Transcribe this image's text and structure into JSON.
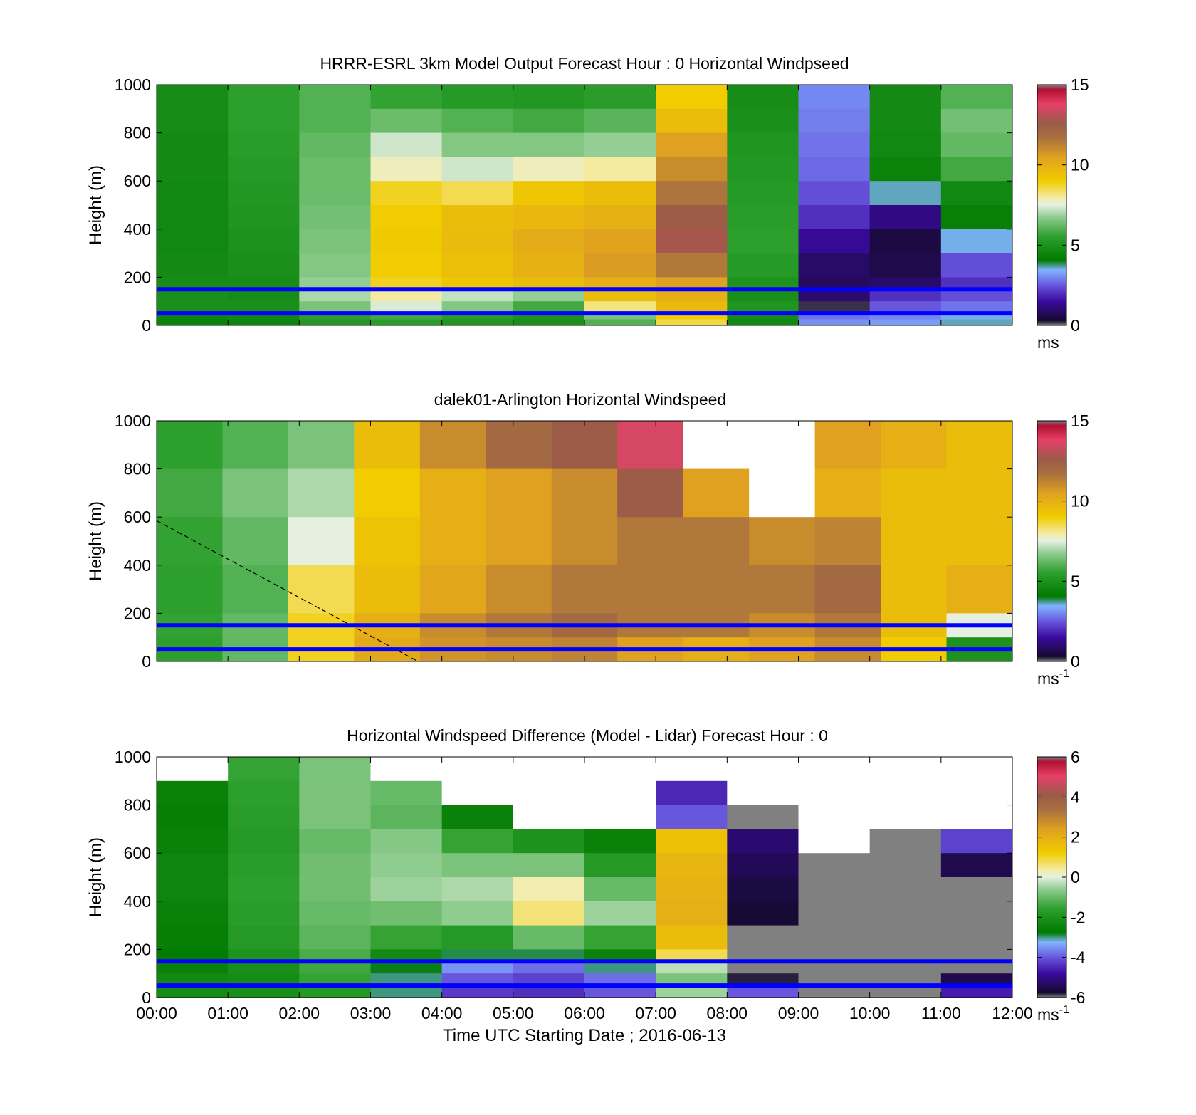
{
  "figure": {
    "xlabel": "Time UTC  Starting Date ; 2016-06-13",
    "x_ticks": [
      "00:00",
      "01:00",
      "02:00",
      "03:00",
      "04:00",
      "05:00",
      "06:00",
      "07:00",
      "08:00",
      "09:00",
      "10:00",
      "11:00",
      "12:00"
    ]
  },
  "colors": {
    "blue_line": "#0000ff",
    "missing": "#ffffff",
    "out_of_range": "#808080"
  },
  "chart_data": [
    {
      "type": "heatmap",
      "title": "HRRR-ESRL 3km Model Output   Forecast Hour : 0 Horizontal Windpseed",
      "ylabel": "Height (m)",
      "xlim": [
        "00:00",
        "12:00"
      ],
      "ylim": [
        0,
        1000
      ],
      "y_ticks": [
        0,
        200,
        400,
        600,
        800,
        1000
      ],
      "colorbar": {
        "ticks": [
          0,
          5,
          10,
          15
        ],
        "unit": "ms",
        "unit_sup": "",
        "range": [
          0,
          15
        ]
      },
      "hlines": [
        150,
        50
      ],
      "time_hours": [
        0,
        1,
        2,
        3,
        4,
        5,
        6,
        7,
        8,
        9,
        10,
        11
      ],
      "height_levels_m": [
        1000,
        900,
        800,
        700,
        600,
        500,
        400,
        300,
        200,
        150,
        100,
        50,
        25
      ],
      "windspeed_ms": [
        [
          4.8,
          5.5,
          6.0,
          5.6,
          5.3,
          5.2,
          5.4,
          9.0,
          4.8,
          3.0,
          4.7,
          6.0
        ],
        [
          4.8,
          5.5,
          6.0,
          6.3,
          6.0,
          5.8,
          6.1,
          9.5,
          4.9,
          2.9,
          4.7,
          6.4
        ],
        [
          4.7,
          5.4,
          6.2,
          7.3,
          6.6,
          6.6,
          6.8,
          10.5,
          5.1,
          2.8,
          4.6,
          6.2
        ],
        [
          4.7,
          5.3,
          6.3,
          7.8,
          7.3,
          7.8,
          8.0,
          11.0,
          5.2,
          2.7,
          4.4,
          5.8
        ],
        [
          4.6,
          5.2,
          6.3,
          8.8,
          8.5,
          9.2,
          9.5,
          11.6,
          5.3,
          2.4,
          3.6,
          4.6
        ],
        [
          4.6,
          5.1,
          6.4,
          9.0,
          9.5,
          9.7,
          9.9,
          12.5,
          5.4,
          2.0,
          1.2,
          4.3
        ],
        [
          4.6,
          5.0,
          6.5,
          9.1,
          9.6,
          10.1,
          10.4,
          12.8,
          5.5,
          1.4,
          0.5,
          3.5
        ],
        [
          4.7,
          4.9,
          6.6,
          9.0,
          9.4,
          9.9,
          10.6,
          11.5,
          5.3,
          0.9,
          0.6,
          2.4
        ],
        [
          4.8,
          4.8,
          6.8,
          8.8,
          9.2,
          9.5,
          10.0,
          10.5,
          5.0,
          0.8,
          0.9,
          2.0
        ],
        [
          4.9,
          4.8,
          7.0,
          8.0,
          7.2,
          6.8,
          9.5,
          10.0,
          4.9,
          1.0,
          2.0,
          2.4
        ],
        [
          4.9,
          4.9,
          6.5,
          7.4,
          6.6,
          5.8,
          8.2,
          9.6,
          5.1,
          0.2,
          2.5,
          2.8
        ],
        [
          4.5,
          4.6,
          5.5,
          5.8,
          5.4,
          5.0,
          6.5,
          9.0,
          4.8,
          2.8,
          3.0,
          3.5
        ],
        [
          4.4,
          4.5,
          5.2,
          5.4,
          5.1,
          4.9,
          6.0,
          8.6,
          4.6,
          3.1,
          3.2,
          3.6
        ]
      ]
    },
    {
      "type": "heatmap",
      "title": "dalek01-Arlington  Horizontal Windspeed",
      "ylabel": "Height (m)",
      "xlim": [
        "00:00",
        "12:00"
      ],
      "ylim": [
        0,
        1000
      ],
      "y_ticks": [
        0,
        200,
        400,
        600,
        800,
        1000
      ],
      "colorbar": {
        "ticks": [
          0,
          5,
          10,
          15
        ],
        "unit": "ms",
        "unit_sup": "-1",
        "range": [
          0,
          15
        ]
      },
      "hlines": [
        150,
        50
      ],
      "mixing_layer_line": {
        "style": "dashed",
        "points": [
          [
            "00:00",
            585
          ],
          [
            "03:40",
            0
          ]
        ]
      },
      "time_hours": [
        0,
        1,
        2,
        3,
        4,
        5,
        6,
        7,
        8,
        9,
        10,
        11,
        12
      ],
      "height_levels_m": [
        1000,
        800,
        600,
        400,
        200,
        100,
        0
      ],
      "windspeed_ms": [
        [
          5.5,
          6.0,
          6.5,
          9.5,
          11.0,
          12.0,
          12.5,
          13.5,
          null,
          null,
          10.5,
          10.0,
          9.5
        ],
        [
          5.8,
          6.5,
          7.0,
          9.0,
          10.0,
          10.5,
          11.0,
          12.5,
          10.5,
          null,
          10.0,
          9.5,
          9.5
        ],
        [
          5.6,
          6.2,
          7.5,
          9.3,
          10.0,
          10.5,
          11.0,
          11.5,
          11.5,
          11.0,
          11.2,
          9.5,
          9.5
        ],
        [
          5.5,
          6.0,
          8.5,
          9.5,
          10.3,
          11.0,
          11.5,
          11.5,
          11.5,
          11.5,
          12.0,
          9.5,
          10.0
        ],
        [
          5.6,
          6.2,
          8.8,
          10.0,
          11.0,
          11.5,
          12.0,
          11.5,
          11.5,
          11.0,
          11.5,
          9.5,
          7.5
        ],
        [
          5.5,
          6.2,
          8.8,
          10.2,
          10.8,
          11.0,
          11.2,
          10.5,
          10.0,
          10.5,
          11.0,
          9.0,
          5.0
        ],
        [
          5.0,
          5.5,
          8.5,
          9.5,
          9.8,
          9.5,
          9.5,
          9.5,
          9.0,
          8.5,
          8.0,
          7.5,
          4.5
        ]
      ]
    },
    {
      "type": "heatmap",
      "title": "Horizontal Windspeed Difference (Model - Lidar) Forecast Hour : 0",
      "ylabel": "Height (m)",
      "xlabel": "Time UTC  Starting Date ; 2016-06-13",
      "xlim": [
        "00:00",
        "12:00"
      ],
      "ylim": [
        0,
        1000
      ],
      "y_ticks": [
        0,
        200,
        400,
        600,
        800,
        1000
      ],
      "colorbar": {
        "ticks": [
          -6,
          -4,
          -2,
          0,
          2,
          4,
          6
        ],
        "unit": "ms",
        "unit_sup": "-1",
        "range": [
          -6,
          6
        ]
      },
      "hlines": [
        150,
        50
      ],
      "time_hours": [
        0,
        1,
        2,
        3,
        4,
        5,
        6,
        7,
        8,
        9,
        10,
        11
      ],
      "height_levels_m": [
        1000,
        900,
        800,
        700,
        600,
        500,
        400,
        300,
        200,
        150,
        100,
        50
      ],
      "difference_ms": [
        [
          null,
          -1.5,
          -0.8,
          null,
          null,
          null,
          null,
          null,
          null,
          null,
          null,
          null
        ],
        [
          -2.5,
          -1.6,
          -0.8,
          -1.0,
          null,
          null,
          null,
          -4.5,
          null,
          null,
          null,
          null
        ],
        [
          -2.6,
          -1.7,
          -0.8,
          -1.1,
          -2.5,
          null,
          null,
          -4.0,
          -7,
          null,
          null,
          null
        ],
        [
          -2.5,
          -1.8,
          -1.0,
          -0.7,
          -1.5,
          -2.0,
          -2.5,
          1.5,
          -5.2,
          null,
          -7,
          -4.2
        ],
        [
          -2.4,
          -1.7,
          -0.9,
          -0.6,
          -0.8,
          -0.8,
          -1.8,
          1.8,
          -5.4,
          -7,
          -7,
          -5.5
        ],
        [
          -2.4,
          -1.6,
          -0.9,
          -0.5,
          -0.4,
          0.3,
          -1.0,
          1.9,
          -5.6,
          -7,
          -7,
          -7
        ],
        [
          -2.5,
          -1.7,
          -1.0,
          -0.9,
          -0.6,
          0.6,
          -0.5,
          2.0,
          -5.7,
          -7,
          -7,
          -7
        ],
        [
          -2.6,
          -1.8,
          -1.1,
          -1.5,
          -1.8,
          -1.0,
          -1.5,
          1.6,
          -7,
          -7,
          -7,
          -7
        ],
        [
          -2.7,
          -2.0,
          -1.3,
          -2.3,
          -2.9,
          -2.9,
          -2.5,
          0.8,
          -7,
          -7,
          -7,
          -7
        ],
        [
          -2.5,
          -2.1,
          -1.4,
          -2.8,
          -3.5,
          -3.8,
          -3.0,
          -0.3,
          -7,
          -7,
          -7,
          -7
        ],
        [
          -2.3,
          -2.2,
          -1.5,
          -3.0,
          -4.0,
          -4.2,
          -3.8,
          -0.8,
          -5.8,
          -7,
          -7,
          -5.5
        ],
        [
          -2.2,
          -2.1,
          -1.8,
          -3.0,
          -4.3,
          -4.4,
          -4.0,
          -0.5,
          -4.0,
          -7,
          -7,
          -4.6
        ]
      ]
    }
  ]
}
